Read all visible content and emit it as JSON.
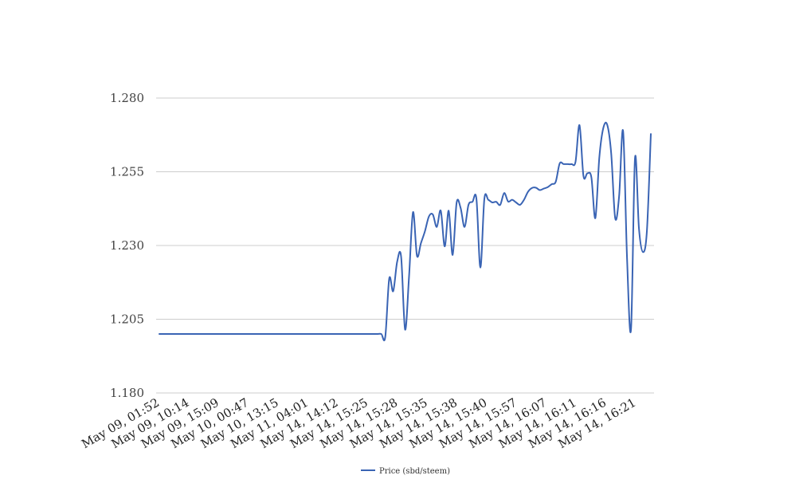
{
  "chart_data": {
    "type": "line",
    "title": "",
    "xlabel": "",
    "ylabel": "",
    "ylim": [
      1.18,
      1.28
    ],
    "y_ticks": [
      "1.280",
      "1.255",
      "1.230",
      "1.205",
      "1.180"
    ],
    "x_tick_labels": [
      "May 09, 01:52",
      "May 09, 10:14",
      "May 09, 15:09",
      "May 10, 00:47",
      "May 10, 13:15",
      "May 11, 04:01",
      "May 14, 14:12",
      "May 14, 15:25",
      "May 14, 15:28",
      "May 14, 15:35",
      "May 14, 15:38",
      "May 14, 15:40",
      "May 14, 15:57",
      "May 14, 16:07",
      "May 14, 16:11",
      "May 14, 16:16",
      "May 14, 16:21"
    ],
    "grid": true,
    "legend_position": "bottom",
    "color": "#3a64b4",
    "series": [
      {
        "name": "Price (sbd/steem)",
        "values": [
          1.2,
          1.2,
          1.2,
          1.2,
          1.2,
          1.2,
          1.2,
          1.2,
          1.2,
          1.2,
          1.2,
          1.2,
          1.2,
          1.2,
          1.2,
          1.2,
          1.2,
          1.2,
          1.2,
          1.2,
          1.2,
          1.2,
          1.2,
          1.2,
          1.2,
          1.2,
          1.2,
          1.2,
          1.2,
          1.2,
          1.2,
          1.2,
          1.2,
          1.2,
          1.2,
          1.2,
          1.2,
          1.2,
          1.2,
          1.2,
          1.2,
          1.2,
          1.2,
          1.2,
          1.2,
          1.2,
          1.2,
          1.2,
          1.2,
          1.2,
          1.2,
          1.2,
          1.2,
          1.2,
          1.2,
          1.2,
          1.2,
          1.199,
          1.2188,
          1.2145,
          1.2245,
          1.2262,
          1.2015,
          1.2195,
          1.2413,
          1.2265,
          1.2308,
          1.2348,
          1.2398,
          1.2405,
          1.2363,
          1.2418,
          1.2297,
          1.2418,
          1.2268,
          1.2445,
          1.2428,
          1.2363,
          1.2438,
          1.2448,
          1.2458,
          1.2225,
          1.2458,
          1.2455,
          1.2446,
          1.2448,
          1.2438,
          1.2478,
          1.2449,
          1.2455,
          1.2446,
          1.2438,
          1.2455,
          1.2482,
          1.2495,
          1.2496,
          1.2488,
          1.2493,
          1.2498,
          1.2508,
          1.2516,
          1.2578,
          1.2576,
          1.2576,
          1.2576,
          1.2584,
          1.2708,
          1.2536,
          1.2545,
          1.2531,
          1.2393,
          1.2598,
          1.2698,
          1.2709,
          1.2612,
          1.2393,
          1.2468,
          1.2688,
          1.2255,
          1.2016,
          1.2596,
          1.2358,
          1.2278,
          1.2348,
          1.2678
        ]
      }
    ]
  }
}
